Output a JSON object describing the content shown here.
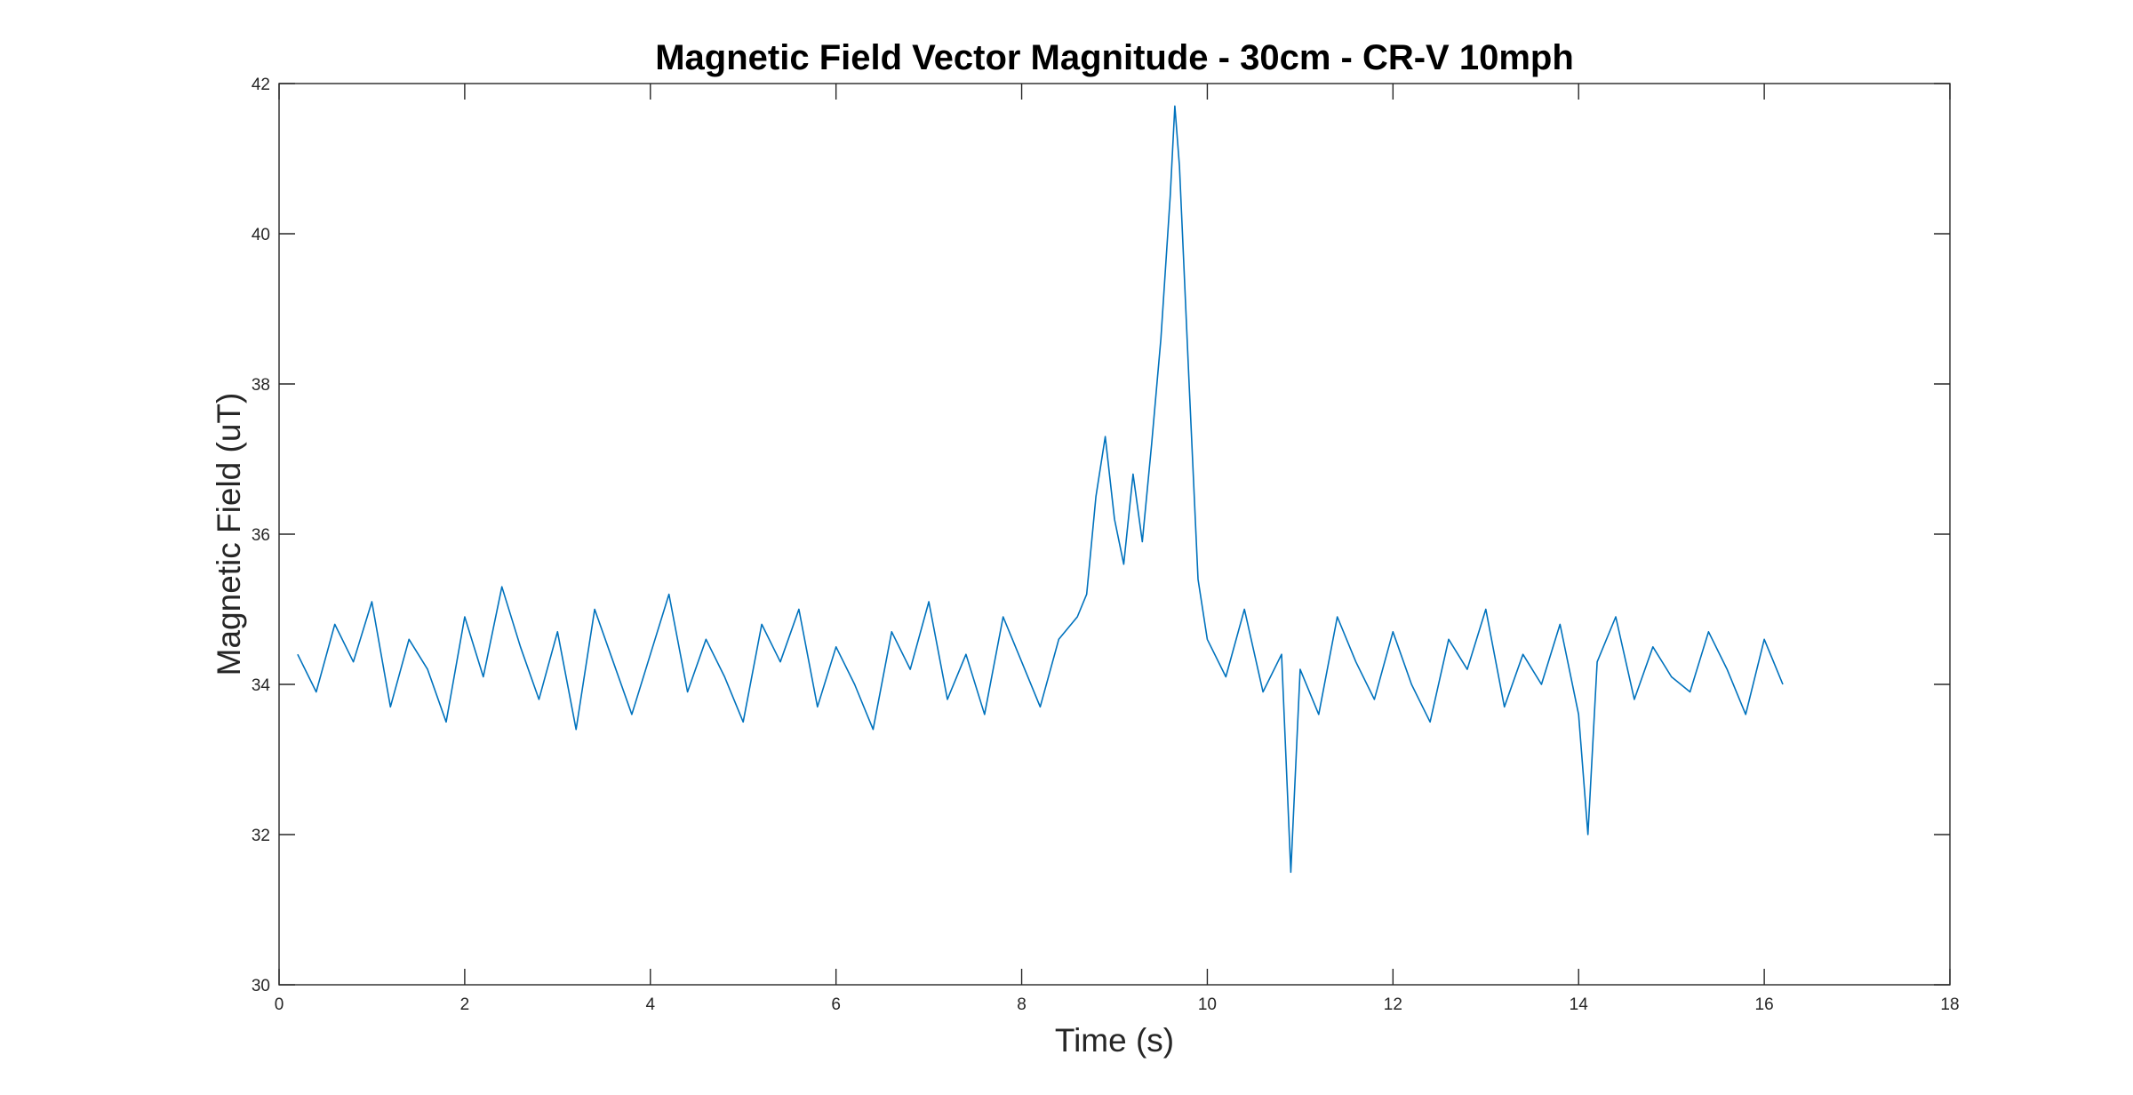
{
  "chart_data": {
    "type": "line",
    "title": "Magnetic Field Vector Magnitude - 30cm - CR-V 10mph",
    "xlabel": "Time (s)",
    "ylabel": "Magnetic Field (uT)",
    "xlim": [
      0,
      18
    ],
    "ylim": [
      30,
      42
    ],
    "xticks": [
      0,
      2,
      4,
      6,
      8,
      10,
      12,
      14,
      16,
      18
    ],
    "yticks": [
      30,
      32,
      34,
      36,
      38,
      40,
      42
    ],
    "xtick_labels": [
      "0",
      "2",
      "4",
      "6",
      "8",
      "10",
      "12",
      "14",
      "16",
      "18"
    ],
    "ytick_labels": [
      "30",
      "32",
      "34",
      "36",
      "38",
      "40",
      "42"
    ],
    "grid": false,
    "box": true,
    "line_color": "#0072BD",
    "series": [
      {
        "x": [
          0.2,
          0.4,
          0.6,
          0.8,
          1.0,
          1.2,
          1.4,
          1.6,
          1.8,
          2.0,
          2.2,
          2.4,
          2.6,
          2.8,
          3.0,
          3.2,
          3.4,
          3.6,
          3.8,
          4.0,
          4.2,
          4.4,
          4.6,
          4.8,
          5.0,
          5.2,
          5.4,
          5.6,
          5.8,
          6.0,
          6.2,
          6.4,
          6.6,
          6.8,
          7.0,
          7.2,
          7.4,
          7.6,
          7.8,
          8.0,
          8.2,
          8.4,
          8.6,
          8.7,
          8.8,
          8.9,
          9.0,
          9.1,
          9.2,
          9.3,
          9.4,
          9.5,
          9.6,
          9.65,
          9.7,
          9.8,
          9.9,
          10.0,
          10.2,
          10.4,
          10.6,
          10.8,
          10.9,
          11.0,
          11.2,
          11.4,
          11.6,
          11.8,
          12.0,
          12.2,
          12.4,
          12.6,
          12.8,
          13.0,
          13.2,
          13.4,
          13.6,
          13.8,
          14.0,
          14.1,
          14.2,
          14.4,
          14.6,
          14.8,
          15.0,
          15.2,
          15.4,
          15.6,
          15.8,
          16.0,
          16.1,
          16.2
        ],
        "values": [
          34.4,
          33.9,
          34.8,
          34.3,
          35.1,
          33.7,
          34.6,
          34.2,
          33.5,
          34.9,
          34.1,
          35.3,
          34.5,
          33.8,
          34.7,
          33.4,
          35.0,
          34.3,
          33.6,
          34.4,
          35.2,
          33.9,
          34.6,
          34.1,
          33.5,
          34.8,
          34.3,
          35.0,
          33.7,
          34.5,
          34.0,
          33.4,
          34.7,
          34.2,
          35.1,
          33.8,
          34.4,
          33.6,
          34.9,
          34.3,
          33.7,
          34.6,
          34.9,
          35.2,
          36.5,
          37.3,
          36.2,
          35.6,
          36.8,
          35.9,
          37.2,
          38.6,
          40.5,
          41.7,
          40.9,
          38.1,
          35.4,
          34.6,
          34.1,
          35.0,
          33.9,
          34.4,
          31.5,
          34.2,
          33.6,
          34.9,
          34.3,
          33.8,
          34.7,
          34.0,
          33.5,
          34.6,
          34.2,
          35.0,
          33.7,
          34.4,
          34.0,
          34.8,
          33.6,
          32.0,
          34.3,
          34.9,
          33.8,
          34.5,
          34.1,
          33.9,
          34.7,
          34.2,
          33.6,
          34.6,
          34.3,
          34.0
        ]
      }
    ]
  }
}
